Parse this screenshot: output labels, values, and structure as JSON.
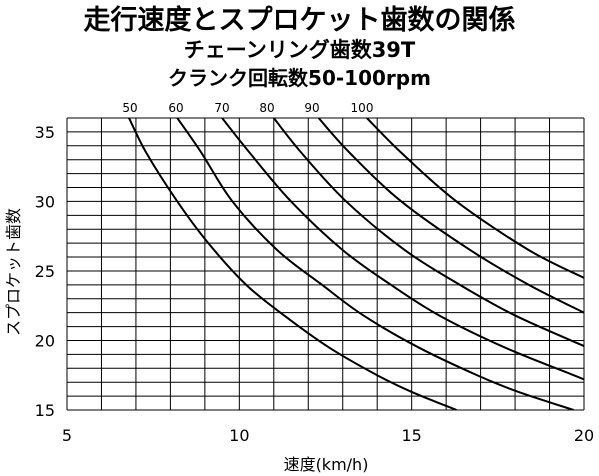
{
  "titles": {
    "line1": "走行速度とスプロケット歯数の関係",
    "line2": "チェーンリング歯数39T",
    "line3": "クランク回転数50-100rpm"
  },
  "chart_data": {
    "type": "line",
    "title": "走行速度とスプロケット歯数の関係",
    "xlabel": "速度(km/h)",
    "ylabel": "スプロケット歯数",
    "xlim": [
      5,
      20
    ],
    "ylim": [
      15,
      35
    ],
    "x_ticks": [
      "5",
      "10",
      "15",
      "20"
    ],
    "y_ticks": [
      "15",
      "20",
      "25",
      "30",
      "35"
    ],
    "grid": true,
    "series": [
      {
        "name": "50",
        "points": [
          [
            6.8,
            36
          ],
          [
            7.3,
            33.5
          ],
          [
            8.2,
            30
          ],
          [
            9.1,
            27
          ],
          [
            10.2,
            24
          ],
          [
            11.3,
            21.8
          ],
          [
            12.6,
            19.5
          ],
          [
            14.0,
            17.5
          ],
          [
            15.0,
            16.3
          ],
          [
            16.3,
            15.0
          ]
        ]
      },
      {
        "name": "60",
        "points": [
          [
            8.2,
            36
          ],
          [
            8.9,
            33.5
          ],
          [
            9.8,
            30
          ],
          [
            11.1,
            26.5
          ],
          [
            12.4,
            24
          ],
          [
            13.6,
            21.8
          ],
          [
            15.2,
            19.5
          ],
          [
            16.9,
            17.5
          ],
          [
            18.1,
            16.3
          ],
          [
            19.7,
            15.0
          ]
        ]
      },
      {
        "name": "70",
        "points": [
          [
            9.5,
            36
          ],
          [
            10.3,
            33.5
          ],
          [
            11.5,
            30
          ],
          [
            13.0,
            26.5
          ],
          [
            14.4,
            24
          ],
          [
            15.8,
            21.8
          ],
          [
            17.7,
            19.5
          ],
          [
            19.7,
            17.5
          ],
          [
            20.0,
            17.2
          ]
        ]
      },
      {
        "name": "80",
        "points": [
          [
            11.0,
            36
          ],
          [
            11.8,
            33.5
          ],
          [
            13.1,
            30
          ],
          [
            14.8,
            26.5
          ],
          [
            16.4,
            24
          ],
          [
            18.0,
            21.8
          ],
          [
            20.0,
            19.6
          ]
        ]
      },
      {
        "name": "90",
        "points": [
          [
            12.3,
            36
          ],
          [
            13.2,
            33.5
          ],
          [
            14.7,
            30
          ],
          [
            16.7,
            26.5
          ],
          [
            18.4,
            24
          ],
          [
            20.0,
            22.0
          ]
        ]
      },
      {
        "name": "100",
        "points": [
          [
            13.7,
            36
          ],
          [
            14.7,
            33.5
          ],
          [
            16.3,
            30
          ],
          [
            18.4,
            26.5
          ],
          [
            20.0,
            24.5
          ]
        ]
      }
    ]
  }
}
